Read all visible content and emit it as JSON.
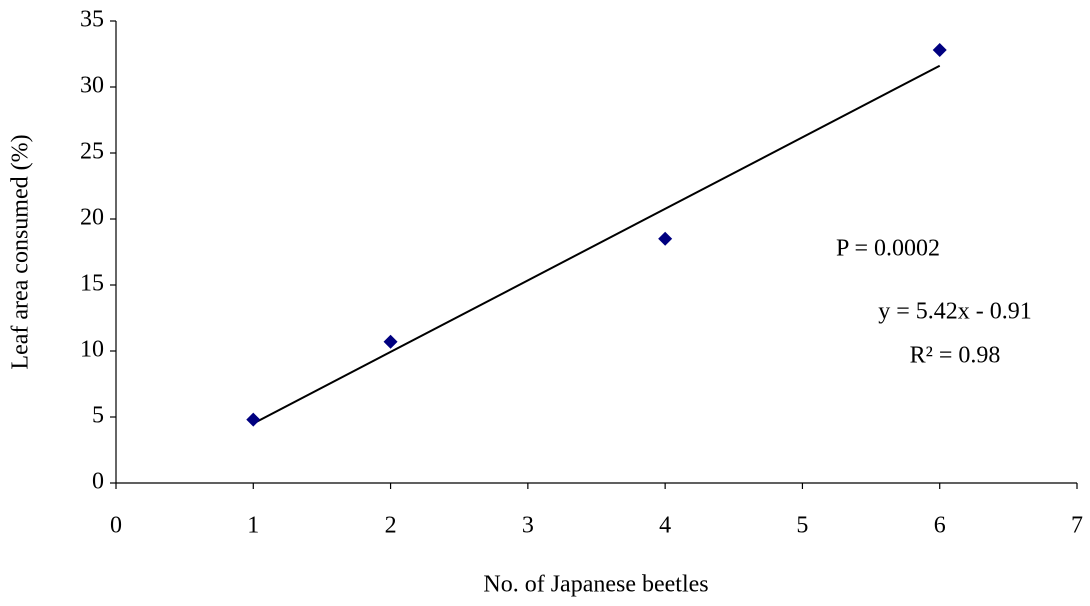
{
  "chart_data": {
    "type": "scatter",
    "x_label": "No. of Japanese beetles",
    "y_label": "Leaf area consumed (%)",
    "x": [
      1,
      2,
      4,
      6
    ],
    "series": [
      {
        "name": "Leaf area consumed",
        "color": "#000080",
        "values": [
          4.8,
          10.7,
          18.5,
          32.8
        ]
      }
    ],
    "trendline": {
      "x": [
        1,
        6
      ],
      "values": [
        4.51,
        31.61
      ],
      "color": "#000000"
    },
    "annotations": [
      "P = 0.0002",
      "y = 5.42x - 0.91",
      "R² = 0.98"
    ],
    "xlim": [
      0,
      7
    ],
    "xticks": [
      0,
      1,
      2,
      3,
      4,
      5,
      6,
      7
    ],
    "ylim": [
      0,
      35
    ],
    "yticks": [
      0,
      5,
      10,
      15,
      20,
      25,
      30,
      35
    ],
    "grid": false
  }
}
